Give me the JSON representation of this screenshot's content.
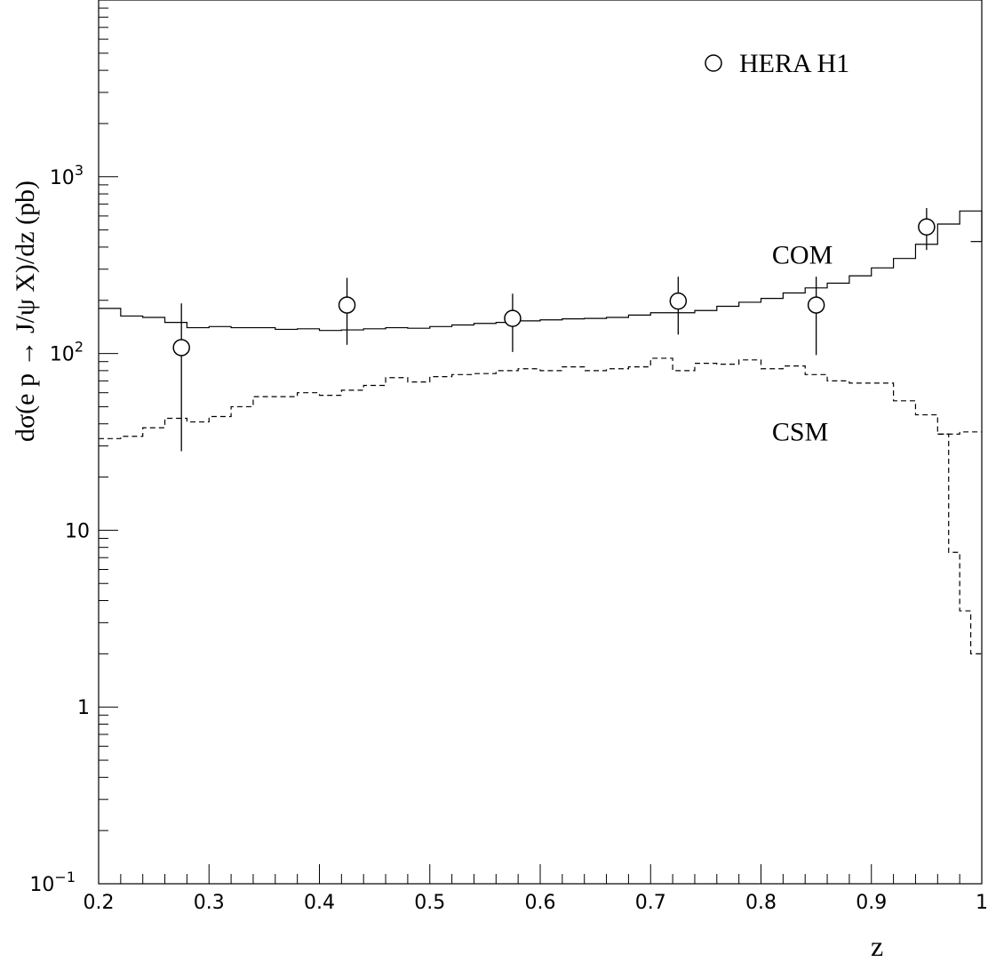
{
  "chart_data": {
    "type": "line",
    "xlabel": "z",
    "ylabel": "dσ(e p → J/ψ X)/dz (pb)",
    "xlim": [
      0.2,
      1.0
    ],
    "ylim": [
      0.1,
      10000
    ],
    "yscale": "log",
    "x_ticks": [
      "0.2",
      "0.3",
      "0.4",
      "0.5",
      "0.6",
      "0.7",
      "0.8",
      "0.9",
      "1"
    ],
    "y_ticks": [
      {
        "base": "10",
        "exp": "−1",
        "value": 0.1
      },
      {
        "base": "1",
        "exp": "",
        "value": 1
      },
      {
        "base": "10",
        "exp": "",
        "value": 10
      },
      {
        "base": "10",
        "exp": "2",
        "value": 100
      },
      {
        "base": "10",
        "exp": "3",
        "value": 1000
      }
    ],
    "grid": false,
    "legend": {
      "position": "top-right",
      "entries": [
        {
          "label": "HERA H1",
          "marker": "open-circle"
        }
      ]
    },
    "bin_edges": [
      0.2,
      0.22,
      0.24,
      0.26,
      0.28,
      0.3,
      0.32,
      0.34,
      0.36,
      0.38,
      0.4,
      0.42,
      0.44,
      0.46,
      0.48,
      0.5,
      0.52,
      0.54,
      0.56,
      0.58,
      0.6,
      0.62,
      0.64,
      0.66,
      0.68,
      0.7,
      0.72,
      0.74,
      0.76,
      0.78,
      0.8,
      0.82,
      0.84,
      0.86,
      0.88,
      0.9,
      0.92,
      0.94,
      0.96,
      0.98,
      1.0
    ],
    "series": [
      {
        "name": "COM",
        "style": "solid",
        "step_values": [
          180,
          163,
          160,
          150,
          140,
          142,
          140,
          140,
          137,
          138,
          135,
          136,
          138,
          140,
          139,
          142,
          145,
          148,
          150,
          153,
          155,
          157,
          158,
          160,
          165,
          170,
          170,
          175,
          185,
          195,
          205,
          220,
          235,
          250,
          275,
          305,
          345,
          415,
          540,
          640
        ],
        "label_x": 0.81,
        "label_y": 370
      },
      {
        "name": "CSM",
        "style": "dashed",
        "step_values": [
          33,
          34,
          38,
          43,
          41,
          44,
          50,
          57,
          57,
          60,
          58,
          62,
          66,
          73,
          69,
          74,
          76,
          77,
          80,
          82,
          80,
          84,
          80,
          82,
          84,
          94,
          80,
          88,
          87,
          92,
          82,
          85,
          76,
          70,
          68,
          68,
          54,
          45,
          35,
          36
        ],
        "label_x": 0.81,
        "label_y": 37
      }
    ],
    "tail_steps": [
      {
        "x0": 0.96,
        "x1": 0.97,
        "y": 35
      },
      {
        "x0": 0.96,
        "x1": 0.97,
        "y": 13
      },
      {
        "x0": 0.97,
        "x1": 0.98,
        "y": 7.5
      },
      {
        "x0": 0.98,
        "x1": 0.99,
        "y": 3.5
      },
      {
        "x0": 0.99,
        "x1": 1.0,
        "y": 2
      }
    ],
    "data_points": {
      "name": "HERA H1",
      "x": [
        0.275,
        0.425,
        0.575,
        0.725,
        0.85,
        0.95
      ],
      "y": [
        108,
        188,
        158,
        198,
        188,
        520
      ],
      "y_low": [
        28,
        112,
        102,
        128,
        98,
        385
      ],
      "y_high": [
        192,
        268,
        218,
        272,
        272,
        665
      ]
    }
  }
}
